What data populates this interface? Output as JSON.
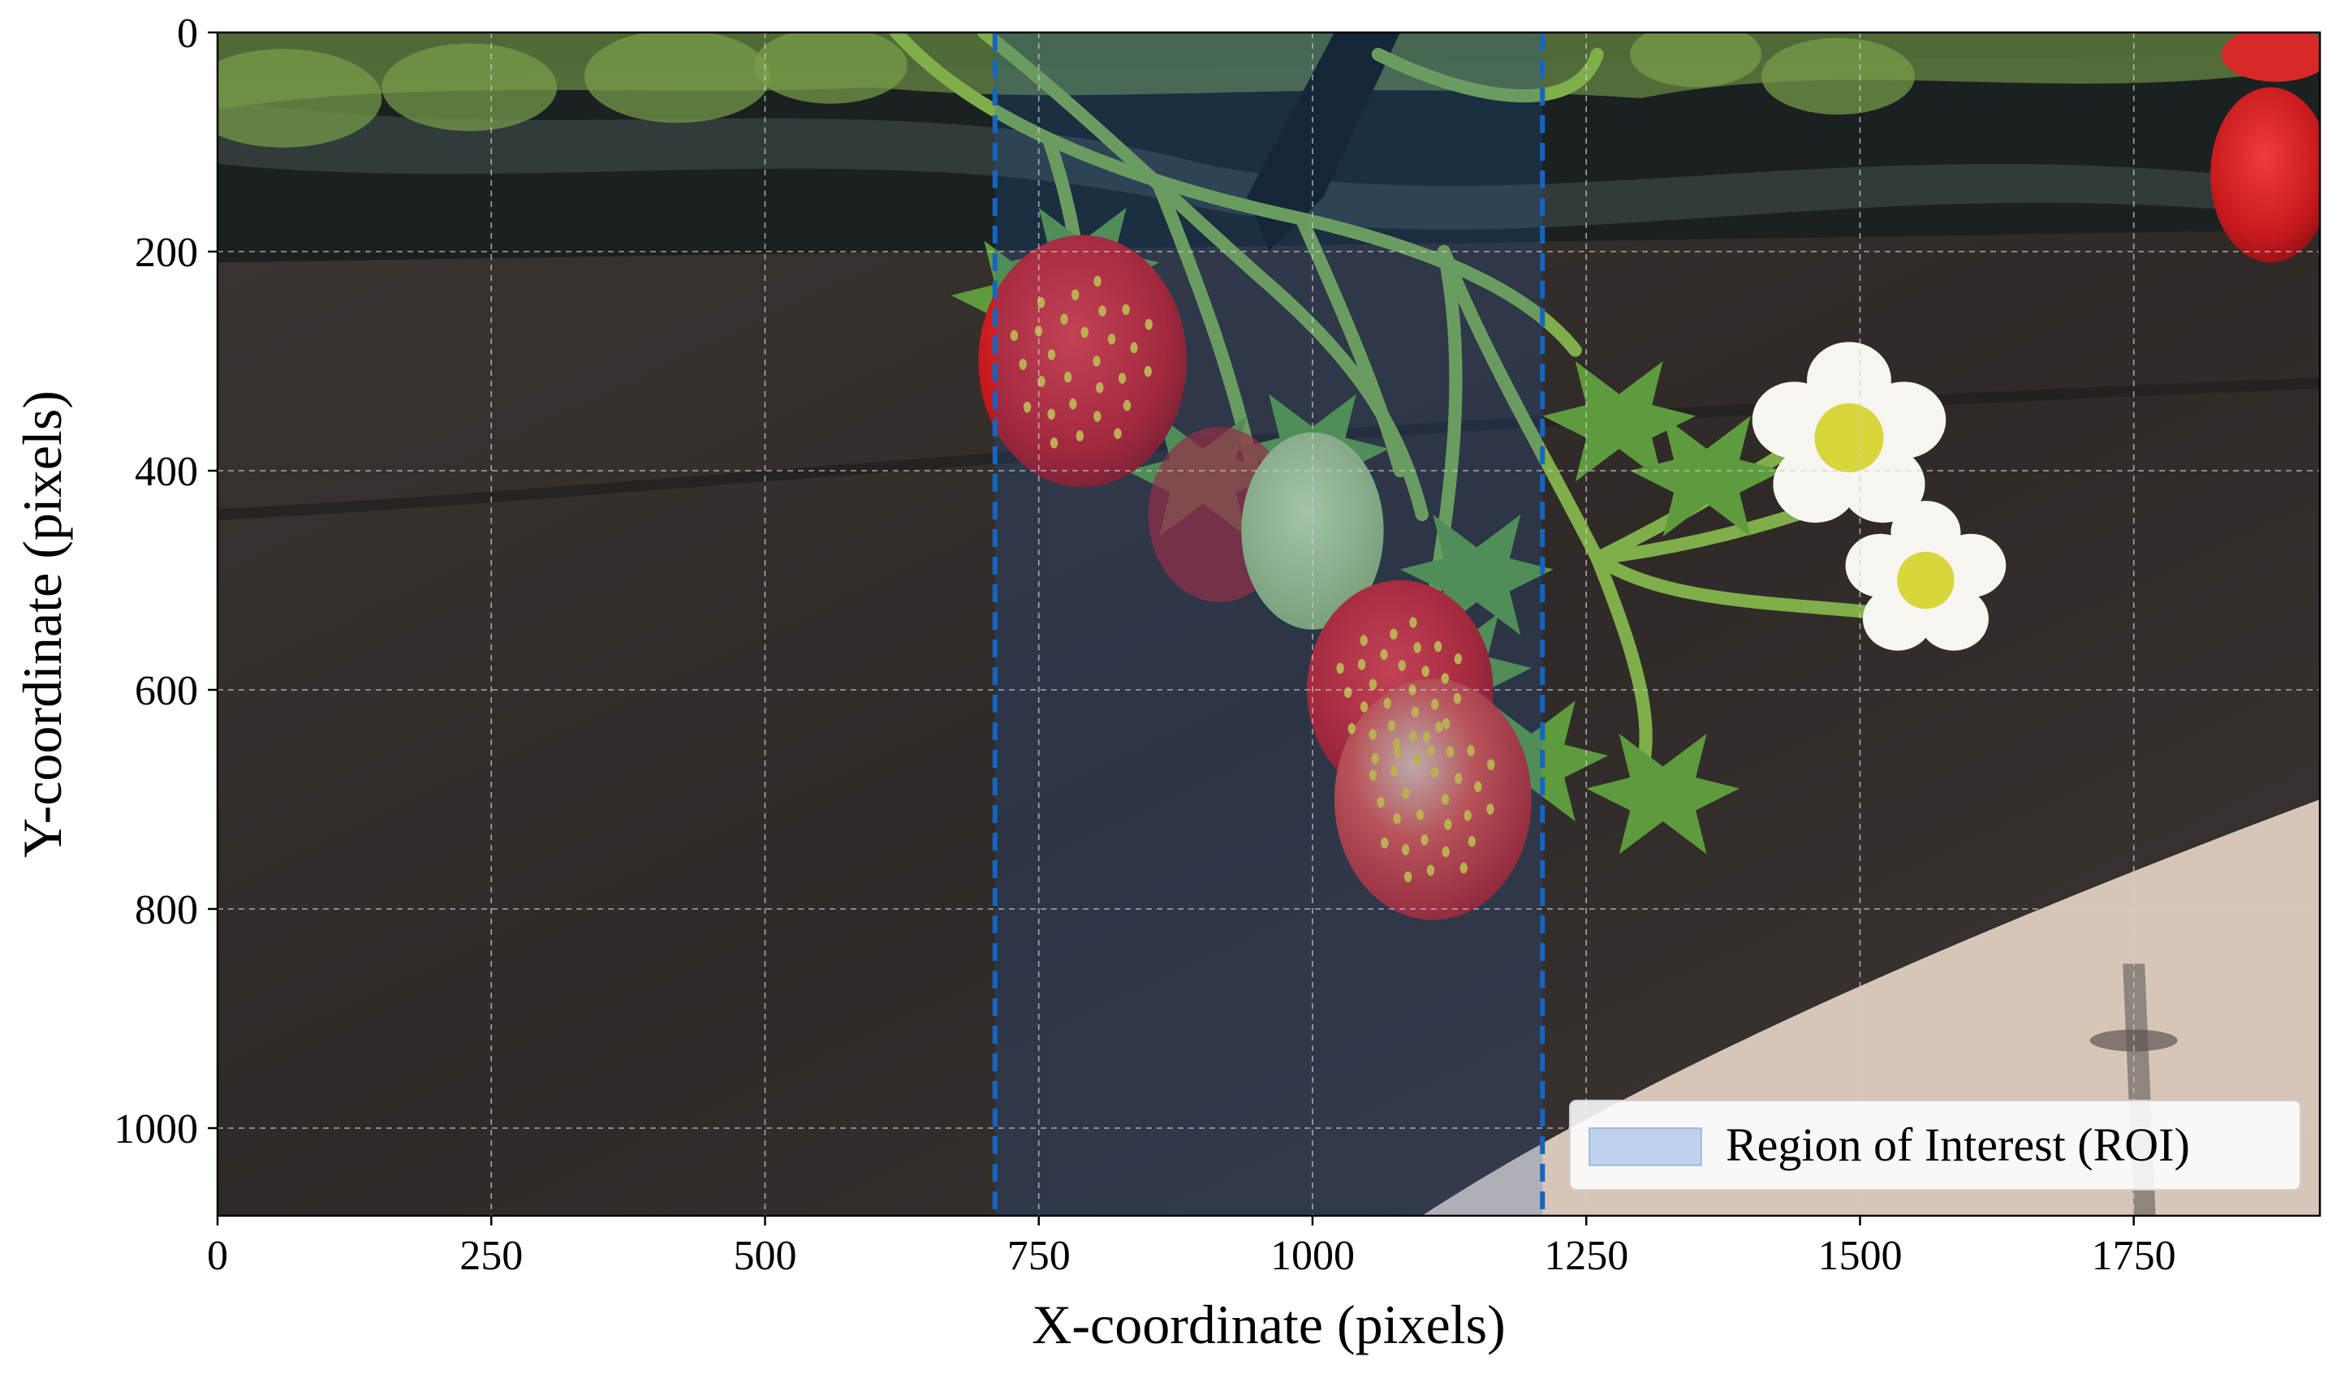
{
  "chart_data": {
    "type": "image",
    "xlabel": "X-coordinate (pixels)",
    "ylabel": "Y-coordinate (pixels)",
    "xlim": [
      0,
      1920
    ],
    "ylim": [
      1080,
      0
    ],
    "y_inverted": true,
    "xticks": [
      0,
      250,
      500,
      750,
      1000,
      1250,
      1500,
      1750
    ],
    "yticks": [
      0,
      200,
      400,
      600,
      800,
      1000
    ],
    "grid": true,
    "roi": {
      "x_start": 710,
      "x_end": 1210,
      "label": "Region of Interest (ROI)",
      "fill_color": "#1f5fb4",
      "line_color": "#1565c0",
      "line_style": "dashed"
    },
    "legend": {
      "placement": "lower-right",
      "entries": [
        "Region of Interest (ROI)"
      ]
    },
    "background_image": "strawberry plant on black grow bag with red strawberries, green unripe strawberry and white flowers"
  }
}
